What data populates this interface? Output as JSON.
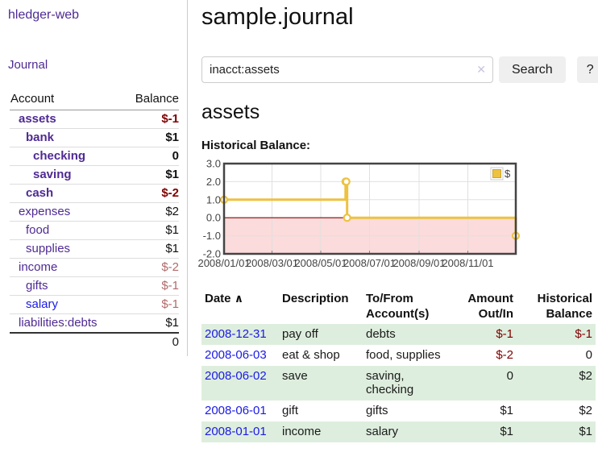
{
  "app": {
    "title": "hledger-web"
  },
  "sidebar": {
    "journal_label": "Journal",
    "accounts_table": {
      "headers": [
        "Account",
        "Balance"
      ],
      "rows": [
        {
          "account": "assets",
          "balance": "$-1",
          "indent": 1,
          "emph": true,
          "balance_tone": "neg-strong"
        },
        {
          "account": "bank",
          "balance": "$1",
          "indent": 2,
          "emph": true,
          "balance_tone": "pos"
        },
        {
          "account": "checking",
          "balance": "0",
          "indent": 3,
          "emph": true,
          "balance_tone": "pos"
        },
        {
          "account": "saving",
          "balance": "$1",
          "indent": 3,
          "emph": true,
          "balance_tone": "pos"
        },
        {
          "account": "cash",
          "balance": "$-2",
          "indent": 2,
          "emph": true,
          "balance_tone": "neg-strong"
        },
        {
          "account": "expenses",
          "balance": "$2",
          "indent": 1,
          "emph": false,
          "balance_tone": "pos"
        },
        {
          "account": "food",
          "balance": "$1",
          "indent": 2,
          "emph": false,
          "balance_tone": "pos"
        },
        {
          "account": "supplies",
          "balance": "$1",
          "indent": 2,
          "emph": false,
          "balance_tone": "pos"
        },
        {
          "account": "income",
          "balance": "$-2",
          "indent": 1,
          "emph": false,
          "balance_tone": "neg-soft"
        },
        {
          "account": "gifts",
          "balance": "$-1",
          "indent": 2,
          "emph": false,
          "balance_tone": "neg-soft"
        },
        {
          "account": "salary",
          "balance": "$-1",
          "indent": 2,
          "emph": false,
          "balance_tone": "neg-soft",
          "link_style": "blue"
        },
        {
          "account": "liabilities:debts",
          "balance": "$1",
          "indent": 1,
          "emph": false,
          "balance_tone": "pos"
        }
      ],
      "total": "0"
    }
  },
  "main": {
    "title": "sample.journal",
    "search": {
      "value": "inacct:assets",
      "clear_icon": "✕",
      "button_label": "Search",
      "help_label": "?"
    },
    "account_heading": "assets",
    "chart_label": "Historical Balance:"
  },
  "chart_data": {
    "type": "line",
    "step": true,
    "title": "Historical Balance",
    "series": [
      {
        "name": "$",
        "color": "#edc240",
        "points": [
          [
            "2008-01-01",
            1
          ],
          [
            "2008-06-01",
            2
          ],
          [
            "2008-06-02",
            2
          ],
          [
            "2008-06-03",
            0
          ],
          [
            "2008-12-31",
            -1
          ]
        ]
      }
    ],
    "x_range": [
      "2008-01-01",
      "2008-12-31"
    ],
    "ylim": [
      -2.0,
      3.0
    ],
    "y_ticks": [
      3.0,
      2.0,
      1.0,
      0.0,
      -1.0,
      -2.0
    ],
    "x_ticks": [
      {
        "date": "2008-01-01",
        "label": "2008/01/01"
      },
      {
        "date": "2008-03-01",
        "label": "2008/03/01"
      },
      {
        "date": "2008-05-01",
        "label": "2008/05/01"
      },
      {
        "date": "2008-07-01",
        "label": "2008/07/01"
      },
      {
        "date": "2008-09-01",
        "label": "2008/09/01"
      },
      {
        "date": "2008-11-01",
        "label": "2008/11/01"
      }
    ],
    "legend": "$",
    "legend_position": "top-right",
    "grid": true,
    "negative_fill": "#fbdbdb",
    "zero_line_color": "#8b0000"
  },
  "register": {
    "headers": [
      "Date",
      "Description",
      "To/From Account(s)",
      "Amount Out/In",
      "Historical Balance"
    ],
    "sort_icon": "∧",
    "rows": [
      {
        "date": "2008-12-31",
        "description": "pay off",
        "accounts": "debts",
        "amount": "$-1",
        "balance": "$-1"
      },
      {
        "date": "2008-06-03",
        "description": "eat & shop",
        "accounts": "food, supplies",
        "amount": "$-2",
        "balance": "0"
      },
      {
        "date": "2008-06-02",
        "description": "save",
        "accounts": "saving, checking",
        "amount": "0",
        "balance": "$2"
      },
      {
        "date": "2008-06-01",
        "description": "gift",
        "accounts": "gifts",
        "amount": "$1",
        "balance": "$2"
      },
      {
        "date": "2008-01-01",
        "description": "income",
        "accounts": "salary",
        "amount": "$1",
        "balance": "$1"
      }
    ]
  },
  "colors": {
    "link_purple": "#4f2a93",
    "link_blue": "#1a1ae6",
    "negative_strong": "#7f0000",
    "negative_soft": "#b26a6a",
    "row_stripe_green": "#deeede",
    "chart_line_gold": "#edc240",
    "chart_negative_fill": "#fbdbdb",
    "chart_zero_line": "#8b0000"
  }
}
